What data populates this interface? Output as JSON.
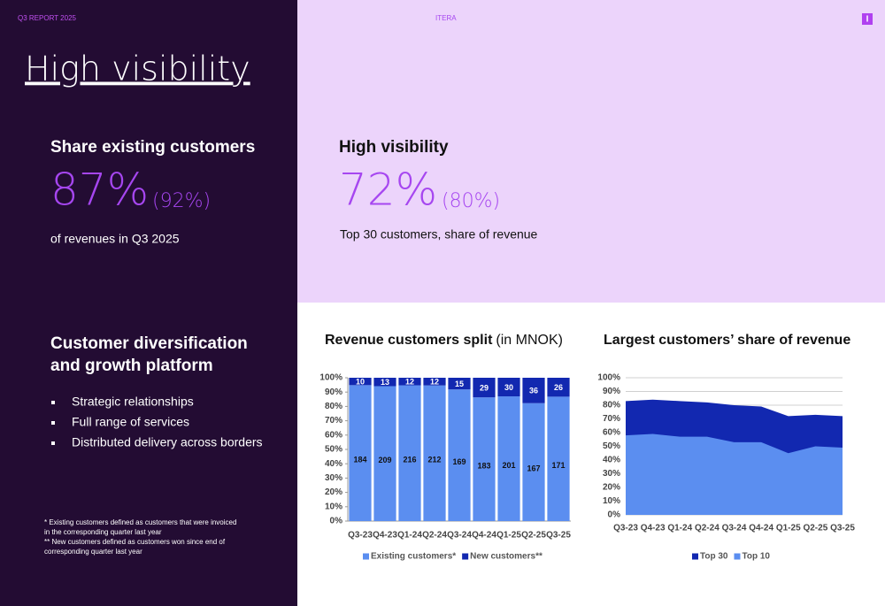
{
  "header": {
    "report": "Q3 REPORT 2025",
    "brand": "ITERA",
    "logo": "I"
  },
  "title": "High visibility",
  "kpis": [
    {
      "heading": "Share existing customers",
      "value": "87%",
      "previous": "(92%)",
      "caption": "of revenues in Q3 2025"
    },
    {
      "heading": "High visibility",
      "value": "72%",
      "previous": "(80%)",
      "caption": "Top 30 customers, share of revenue"
    }
  ],
  "diversification": {
    "heading": [
      "Customer diversification",
      "and growth platform"
    ],
    "bullets": [
      "Strategic relationships",
      "Full range of services",
      "Distributed delivery across borders"
    ]
  },
  "footnotes": [
    "*  Existing customers defined as customers that were invoiced",
    "in the corresponding quarter last year",
    "** New customers defined as customers won since end of",
    "corresponding quarter last year"
  ],
  "chart_data": [
    {
      "type": "bar",
      "stacking": "percent",
      "title": "Revenue customers split",
      "subtitle": "(in MNOK)",
      "categories": [
        "Q3-23",
        "Q4-23",
        "Q1-24",
        "Q2-24",
        "Q3-24",
        "Q4-24",
        "Q1-25",
        "Q2-25",
        "Q3-25"
      ],
      "series": [
        {
          "name": "Existing customers*",
          "color": "#5b8ef0",
          "label_color": "#111111",
          "values": [
            184,
            209,
            216,
            212,
            169,
            183,
            201,
            167,
            171
          ]
        },
        {
          "name": "New customers**",
          "color": "#1228b0",
          "label_color": "#ffffff",
          "values": [
            10,
            13,
            12,
            12,
            15,
            29,
            30,
            36,
            26
          ]
        }
      ],
      "ylim": [
        0,
        100
      ],
      "yticks": [
        {
          "value": 0,
          "label": "0%"
        },
        {
          "value": 10,
          "label": "10%"
        },
        {
          "value": 20,
          "label": "20%"
        },
        {
          "value": 30,
          "label": "30%"
        },
        {
          "value": 40,
          "label": "40%"
        },
        {
          "value": 50,
          "label": "50%"
        },
        {
          "value": 60,
          "label": "60%"
        },
        {
          "value": 70,
          "label": "70%"
        },
        {
          "value": 80,
          "label": "80%"
        },
        {
          "value": 90,
          "label": "90%"
        },
        {
          "value": 100,
          "label": "100%"
        }
      ],
      "grid": false,
      "legend": "bottom"
    },
    {
      "type": "area",
      "title": "Largest customers’ share of revenue",
      "categories": [
        "Q3-23",
        "Q4-23",
        "Q1-24",
        "Q2-24",
        "Q3-24",
        "Q4-24",
        "Q1-25",
        "Q2-25",
        "Q3-25"
      ],
      "series": [
        {
          "name": "Top 30",
          "color": "#1228b0",
          "values": [
            83,
            84,
            83,
            82,
            80,
            79,
            72,
            73,
            72
          ]
        },
        {
          "name": "Top 10",
          "color": "#5b8ef0",
          "values": [
            58,
            59,
            57,
            57,
            53,
            53,
            45,
            50,
            49
          ]
        }
      ],
      "ylim": [
        0,
        100
      ],
      "yticks": [
        {
          "value": 0,
          "label": "0%"
        },
        {
          "value": 10,
          "label": "10%"
        },
        {
          "value": 20,
          "label": "20%"
        },
        {
          "value": 30,
          "label": "30%"
        },
        {
          "value": 40,
          "label": "40%"
        },
        {
          "value": 50,
          "label": "50%"
        },
        {
          "value": 60,
          "label": "60%"
        },
        {
          "value": 70,
          "label": "70%"
        },
        {
          "value": 80,
          "label": "80%"
        },
        {
          "value": 90,
          "label": "90%"
        },
        {
          "value": 100,
          "label": "100%"
        }
      ],
      "grid": true,
      "legend": "bottom"
    }
  ]
}
